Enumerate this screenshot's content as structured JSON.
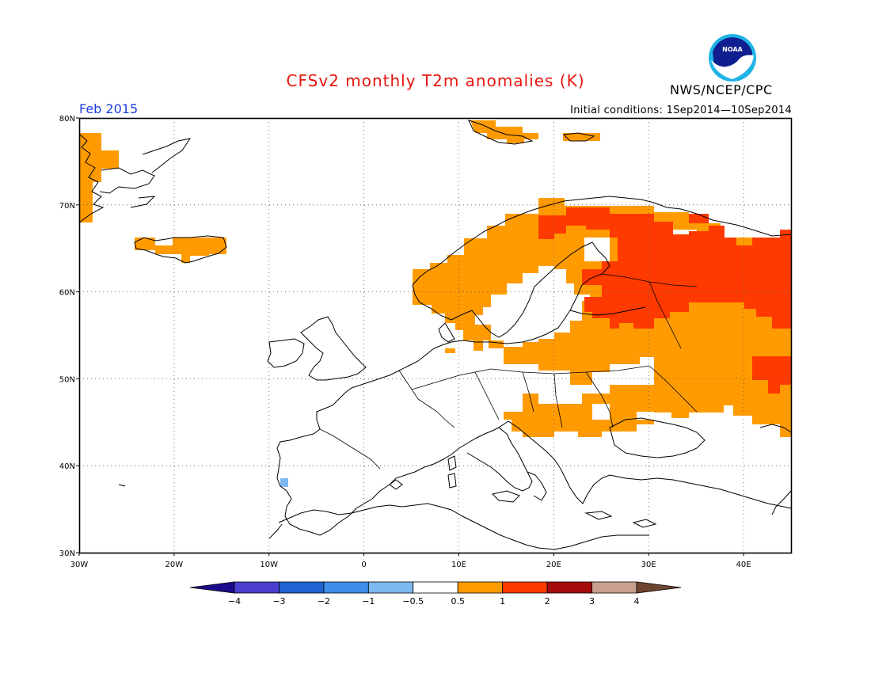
{
  "title": "CFSv2 monthly T2m anomalies (K)",
  "agency": "NWS/NCEP/CPC",
  "logo_text": "NOAA",
  "valid_month": "Feb 2015",
  "initial_conditions": "Initial conditions: 1Sep2014—10Sep2014",
  "map": {
    "region": "Europe",
    "lon_range": [
      -30,
      45
    ],
    "lat_range": [
      30,
      80
    ],
    "lon_ticks": [
      "30W",
      "20W",
      "10W",
      "0",
      "10E",
      "20E",
      "30E",
      "40E"
    ],
    "lat_ticks": [
      "30N",
      "40N",
      "50N",
      "60N",
      "70N",
      "80N"
    ],
    "gridlines": true
  },
  "colorbar": {
    "labels": [
      "−4",
      "−3",
      "−2",
      "−1",
      "−0.5",
      "0.5",
      "1",
      "2",
      "3",
      "4"
    ],
    "colors": [
      "#1b0a8c",
      "#4a3fcf",
      "#1f63d0",
      "#3d8ee8",
      "#7db8f0",
      "#ffffff",
      "#ff9b00",
      "#ff3a00",
      "#a50b0b",
      "#c9a08e",
      "#6e4530"
    ]
  },
  "anomaly_colors": {
    "warm_1": "#ff9b00",
    "warm_2": "#ff3a00",
    "cool_1": "#7db8f0"
  }
}
